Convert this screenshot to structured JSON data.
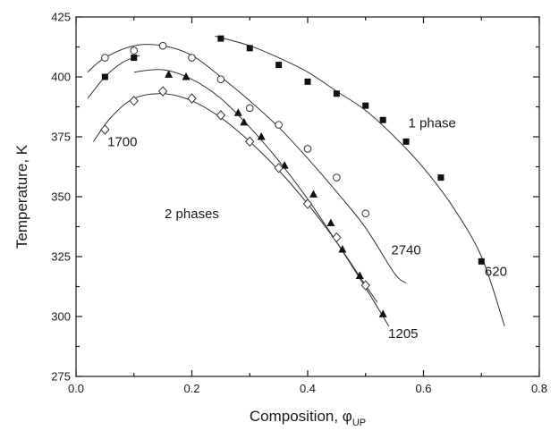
{
  "chart_data": {
    "type": "scatter",
    "title": "",
    "xlabel": "Composition, φ",
    "xlabel_subscript": "UP",
    "ylabel": "Temperature, K",
    "xlim": [
      0.0,
      0.8
    ],
    "ylim": [
      275,
      425
    ],
    "xticks": [
      "0.0",
      "0.2",
      "0.4",
      "0.6",
      "0.8"
    ],
    "xticks_minor": [
      0.1,
      0.3,
      0.5,
      0.7
    ],
    "yticks": [
      "275",
      "300",
      "325",
      "350",
      "375",
      "400",
      "425"
    ],
    "grid": false,
    "series": [
      {
        "name": "620",
        "marker": "filled-square",
        "points": [
          [
            0.05,
            400
          ],
          [
            0.1,
            408
          ],
          [
            0.25,
            416
          ],
          [
            0.3,
            412
          ],
          [
            0.35,
            405
          ],
          [
            0.4,
            398
          ],
          [
            0.45,
            393
          ],
          [
            0.5,
            388
          ],
          [
            0.53,
            382
          ],
          [
            0.57,
            373
          ],
          [
            0.63,
            358
          ],
          [
            0.7,
            323
          ]
        ],
        "fit": [
          [
            0.24,
            417
          ],
          [
            0.3,
            413
          ],
          [
            0.35,
            408
          ],
          [
            0.4,
            402
          ],
          [
            0.45,
            394
          ],
          [
            0.5,
            386
          ],
          [
            0.55,
            375
          ],
          [
            0.6,
            362
          ],
          [
            0.65,
            346
          ],
          [
            0.7,
            325
          ],
          [
            0.74,
            296
          ]
        ],
        "fit_left": [
          [
            0.02,
            391
          ],
          [
            0.05,
            400
          ],
          [
            0.08,
            406
          ],
          [
            0.11,
            409
          ]
        ]
      },
      {
        "name": "2740",
        "marker": "open-circle",
        "points": [
          [
            0.05,
            408
          ],
          [
            0.1,
            411
          ],
          [
            0.15,
            413
          ],
          [
            0.2,
            408
          ],
          [
            0.25,
            399
          ],
          [
            0.3,
            387
          ],
          [
            0.35,
            380
          ],
          [
            0.4,
            370
          ],
          [
            0.45,
            358
          ],
          [
            0.5,
            343
          ]
        ],
        "fit": [
          [
            0.02,
            402
          ],
          [
            0.05,
            408
          ],
          [
            0.1,
            413
          ],
          [
            0.15,
            413
          ],
          [
            0.2,
            409
          ],
          [
            0.25,
            400
          ],
          [
            0.3,
            390
          ],
          [
            0.35,
            379
          ],
          [
            0.4,
            366
          ],
          [
            0.45,
            352
          ],
          [
            0.5,
            337
          ],
          [
            0.55,
            318
          ],
          [
            0.57,
            314
          ]
        ]
      },
      {
        "name": "1205",
        "marker": "filled-triangle",
        "points": [
          [
            0.16,
            401
          ],
          [
            0.19,
            400
          ],
          [
            0.28,
            385
          ],
          [
            0.29,
            381
          ],
          [
            0.32,
            375
          ],
          [
            0.36,
            363
          ],
          [
            0.41,
            351
          ],
          [
            0.44,
            339
          ],
          [
            0.46,
            328
          ],
          [
            0.49,
            317
          ],
          [
            0.53,
            301
          ]
        ],
        "fit": [
          [
            0.1,
            402
          ],
          [
            0.15,
            403
          ],
          [
            0.2,
            399
          ],
          [
            0.25,
            391
          ],
          [
            0.3,
            379
          ],
          [
            0.35,
            365
          ],
          [
            0.4,
            349
          ],
          [
            0.45,
            331
          ],
          [
            0.5,
            312
          ],
          [
            0.54,
            296
          ]
        ]
      },
      {
        "name": "1700",
        "marker": "open-diamond",
        "points": [
          [
            0.05,
            378
          ],
          [
            0.1,
            390
          ],
          [
            0.15,
            394
          ],
          [
            0.2,
            391
          ],
          [
            0.25,
            384
          ],
          [
            0.3,
            373
          ],
          [
            0.35,
            362
          ],
          [
            0.4,
            347
          ],
          [
            0.45,
            333
          ],
          [
            0.5,
            313
          ]
        ],
        "fit": [
          [
            0.03,
            373
          ],
          [
            0.06,
            383
          ],
          [
            0.1,
            391
          ],
          [
            0.15,
            393
          ],
          [
            0.2,
            390
          ],
          [
            0.25,
            383
          ],
          [
            0.3,
            373
          ],
          [
            0.35,
            361
          ],
          [
            0.4,
            347
          ],
          [
            0.45,
            331
          ],
          [
            0.5,
            313
          ],
          [
            0.52,
            306
          ]
        ]
      }
    ],
    "annotations": [
      {
        "text": "1 phase",
        "x": 0.615,
        "y": 379
      },
      {
        "text": "2 phases",
        "x": 0.2,
        "y": 341
      },
      {
        "text": "1700",
        "x": 0.08,
        "y": 371
      },
      {
        "text": "2740",
        "x": 0.57,
        "y": 326
      },
      {
        "text": "620",
        "x": 0.725,
        "y": 317
      },
      {
        "text": "1205",
        "x": 0.565,
        "y": 291
      }
    ]
  }
}
